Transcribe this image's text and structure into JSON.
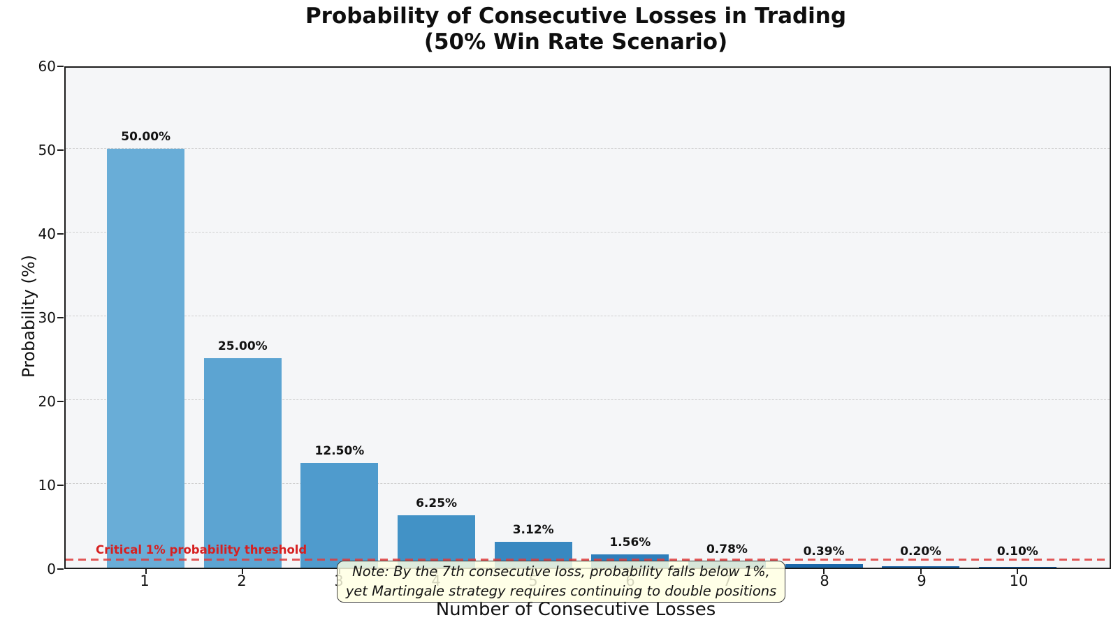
{
  "chart_data": {
    "type": "bar",
    "title_line1": "Probability of Consecutive Losses in Trading",
    "title_line2": "(50% Win Rate Scenario)",
    "xlabel": "Number of Consecutive Losses",
    "ylabel": "Probability (%)",
    "categories": [
      "1",
      "2",
      "3",
      "4",
      "5",
      "6",
      "7",
      "8",
      "9",
      "10"
    ],
    "values": [
      50.0,
      25.0,
      12.5,
      6.25,
      3.12,
      1.56,
      0.78,
      0.39,
      0.2,
      0.1
    ],
    "bar_labels": [
      "50.00%",
      "25.00%",
      "12.50%",
      "6.25%",
      "3.12%",
      "1.56%",
      "0.78%",
      "0.39%",
      "0.20%",
      "0.10%"
    ],
    "bar_colors": [
      "#69add7",
      "#5ca4d2",
      "#4f9bcd",
      "#4292c6",
      "#3888c1",
      "#2e7ebb",
      "#2473b3",
      "#1a67aa",
      "#125ca1",
      "#0b5298"
    ],
    "ylim": [
      0,
      60
    ],
    "yticks": [
      0,
      10,
      20,
      30,
      40,
      50,
      60
    ],
    "grid": true,
    "grid_style": "dashed",
    "legend": "none",
    "plot_background": "#f5f6f8",
    "threshold": {
      "value": 1,
      "label": "Critical 1% probability threshold",
      "line_color": "#de3c3c",
      "label_color": "#d62020",
      "line_style": "dashed"
    },
    "annotation": {
      "line1": "Note: By the 7th consecutive loss, probability falls below 1%,",
      "line2": "yet Martingale strategy requires continuing to double positions",
      "box_color": "#ffffe2"
    }
  }
}
